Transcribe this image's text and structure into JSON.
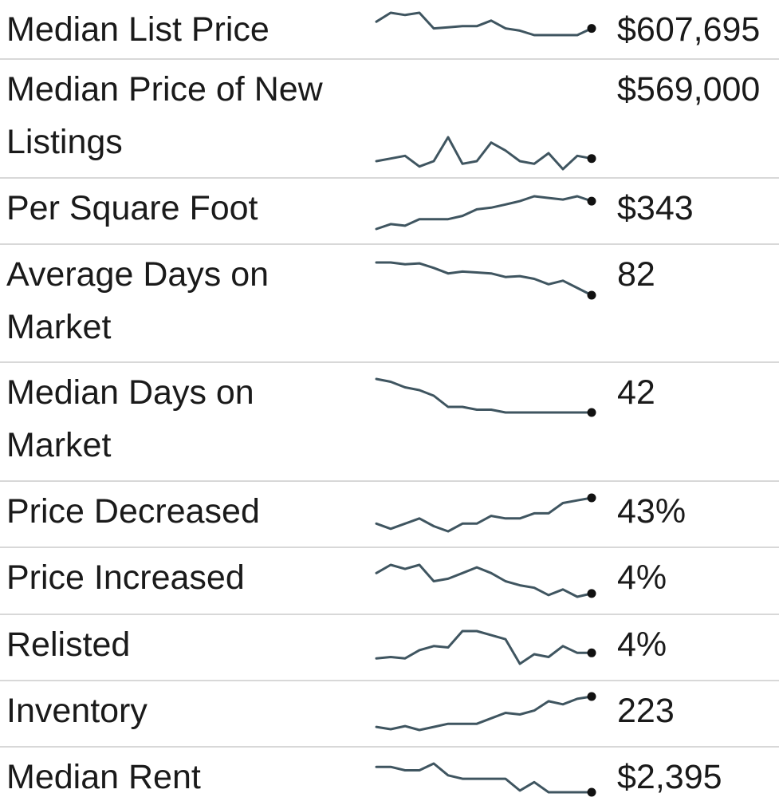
{
  "chart_data": {
    "type": "table",
    "colors": {
      "line": "#3f5560",
      "dot": "#111111",
      "divider": "#d8d8d8",
      "text": "#1a1a1a"
    },
    "rows": [
      {
        "label": "Median List Price",
        "value": "$607,695",
        "trend": [
          27,
          31,
          30,
          31,
          24,
          24.5,
          25,
          25,
          27.5,
          24,
          23,
          21,
          21,
          21,
          21,
          24
        ]
      },
      {
        "label": "Median Price of New Listings",
        "value": "$569,000",
        "trend": [
          16,
          17,
          18,
          14,
          16,
          25,
          15,
          16,
          23,
          20,
          16,
          15,
          19,
          13,
          18,
          17
        ]
      },
      {
        "label": "Per Square Foot",
        "value": "$343",
        "trend": [
          300,
          303,
          302,
          306,
          306,
          306,
          308,
          312,
          313,
          315,
          317,
          320,
          319,
          318,
          320,
          317
        ]
      },
      {
        "label": "Average Days on Market",
        "value": "82",
        "trend": [
          109,
          109,
          108,
          108.5,
          106,
          103,
          104,
          103.5,
          103,
          101,
          101.5,
          100,
          97,
          99,
          95,
          91
        ]
      },
      {
        "label": "Median Days on Market",
        "value": "42",
        "trend": [
          58,
          57,
          55,
          54,
          52,
          48,
          48,
          47,
          47,
          46,
          46,
          46,
          46,
          46,
          46,
          46
        ]
      },
      {
        "label": "Price Decreased",
        "value": "43%",
        "trend": [
          25,
          23,
          25,
          27,
          24,
          22,
          25,
          25,
          28,
          27,
          27,
          29,
          29,
          33,
          34,
          35
        ]
      },
      {
        "label": "Price Increased",
        "value": "4%",
        "trend": [
          6.5,
          7.5,
          7.0,
          7.5,
          5.5,
          5.8,
          6.5,
          7.2,
          6.5,
          5.5,
          5.0,
          4.7,
          3.8,
          4.5,
          3.6,
          4.0
        ]
      },
      {
        "label": "Relisted",
        "value": "4%",
        "trend": [
          3.0,
          3.1,
          3.0,
          3.6,
          3.9,
          3.8,
          5.0,
          5.0,
          4.7,
          4.4,
          2.6,
          3.3,
          3.1,
          3.9,
          3.4,
          3.4
        ]
      },
      {
        "label": "Inventory",
        "value": "223",
        "trend": [
          160,
          157,
          161,
          156,
          160,
          164,
          164,
          164,
          171,
          178,
          176,
          181,
          193,
          189,
          196,
          199
        ]
      },
      {
        "label": "Median Rent",
        "value": "$2,395",
        "trend": [
          2560,
          2560,
          2540,
          2540,
          2580,
          2510,
          2490,
          2490,
          2490,
          2490,
          2420,
          2470,
          2410,
          2410,
          2410,
          2410
        ]
      }
    ]
  }
}
